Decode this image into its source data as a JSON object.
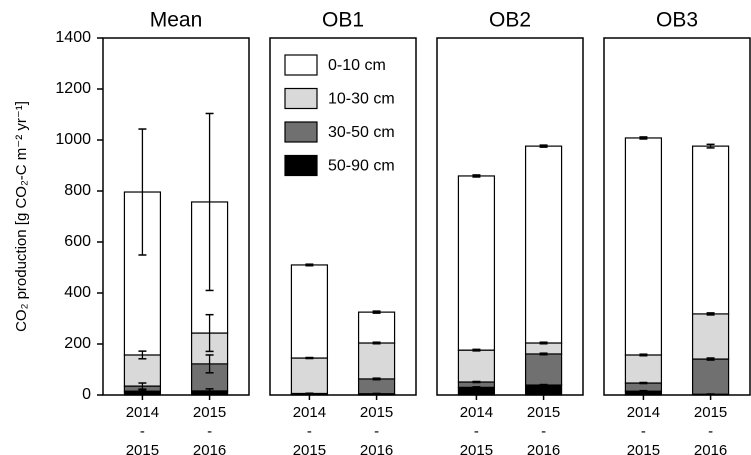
{
  "chart_data": {
    "type": "bar",
    "ylabel": "CO₂ production  [g CO₂-C m⁻² yr⁻¹]",
    "ylim": [
      0,
      1400
    ],
    "yticks": [
      0,
      200,
      400,
      600,
      800,
      1000,
      1200,
      1400
    ],
    "panels": [
      "Mean",
      "OB1",
      "OB2",
      "OB3"
    ],
    "categories": [
      "2014\n-\n2015",
      "2015\n-\n2016"
    ],
    "legend_panel": 1,
    "legend": "upper-left",
    "series": [
      {
        "name": "50-90 cm",
        "color": "#000000",
        "values": [
          [
            15,
            16
          ],
          [
            3,
            5
          ],
          [
            30,
            39
          ],
          [
            15,
            3
          ]
        ],
        "errors": [
          [
            5,
            8
          ],
          [
            1,
            1
          ],
          [
            2,
            2
          ],
          [
            2,
            1
          ]
        ]
      },
      {
        "name": "30-50 cm",
        "color": "#707070",
        "values": [
          [
            20,
            106
          ],
          [
            3,
            58
          ],
          [
            21,
            122
          ],
          [
            32,
            138
          ]
        ],
        "errors": [
          [
            12,
            35
          ],
          [
            1,
            3
          ],
          [
            2,
            3
          ],
          [
            2,
            4
          ]
        ]
      },
      {
        "name": "10-30 cm",
        "color": "#d9d9d9",
        "values": [
          [
            122,
            121
          ],
          [
            139,
            141
          ],
          [
            125,
            43
          ],
          [
            110,
            177
          ]
        ],
        "errors": [
          [
            15,
            72
          ],
          [
            2,
            3
          ],
          [
            3,
            3
          ],
          [
            3,
            4
          ]
        ]
      },
      {
        "name": "0-10 cm",
        "color": "#ffffff",
        "values": [
          [
            639,
            514
          ],
          [
            365,
            121
          ],
          [
            683,
            772
          ],
          [
            851,
            658
          ]
        ],
        "errors": [
          [
            247,
            347
          ],
          [
            3,
            4
          ],
          [
            4,
            4
          ],
          [
            4,
            7
          ]
        ]
      }
    ]
  }
}
